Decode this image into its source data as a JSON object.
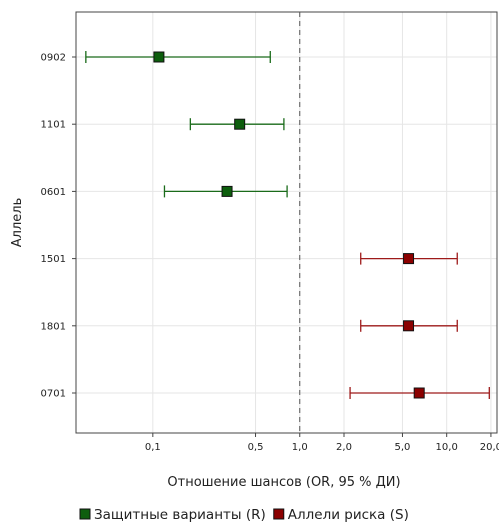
{
  "chart_data": {
    "type": "scatter",
    "subtype": "forest-plot",
    "title": "",
    "xlabel": "Отношение шансов (OR, 95 % ДИ)",
    "ylabel": "Аллель",
    "x_scale": "log",
    "xlim": [
      0.03,
      22
    ],
    "x_ticks": [
      {
        "value": 0.1,
        "label": "0,1"
      },
      {
        "value": 0.5,
        "label": "0,5"
      },
      {
        "value": 1.0,
        "label": "1,0"
      },
      {
        "value": 2.0,
        "label": "2,0"
      },
      {
        "value": 5.0,
        "label": "5,0"
      },
      {
        "value": 10.0,
        "label": "10,0"
      },
      {
        "value": 20.0,
        "label": "20,0"
      }
    ],
    "reference_line": 1.0,
    "grid": true,
    "legend_position": "bottom",
    "series": [
      {
        "name": "Защитные варианты (R)",
        "color": "#1a6b1a",
        "marker_color": "#0d5e0d",
        "points": [
          {
            "allele": "0902",
            "or": 0.11,
            "ci_low": 0.035,
            "ci_high": 0.63
          },
          {
            "allele": "1101",
            "or": 0.39,
            "ci_low": 0.18,
            "ci_high": 0.78
          },
          {
            "allele": "0601",
            "or": 0.32,
            "ci_low": 0.12,
            "ci_high": 0.82
          }
        ]
      },
      {
        "name": "Аллели риска (S)",
        "color": "#9e1a1a",
        "marker_color": "#8b0000",
        "points": [
          {
            "allele": "1501",
            "or": 5.5,
            "ci_low": 2.6,
            "ci_high": 11.8
          },
          {
            "allele": "1801",
            "or": 5.5,
            "ci_low": 2.6,
            "ci_high": 11.8
          },
          {
            "allele": "0701",
            "or": 6.5,
            "ci_low": 2.2,
            "ci_high": 19.5
          }
        ]
      }
    ],
    "categories": [
      "0902",
      "1101",
      "0601",
      "1501",
      "1801",
      "0701"
    ]
  }
}
